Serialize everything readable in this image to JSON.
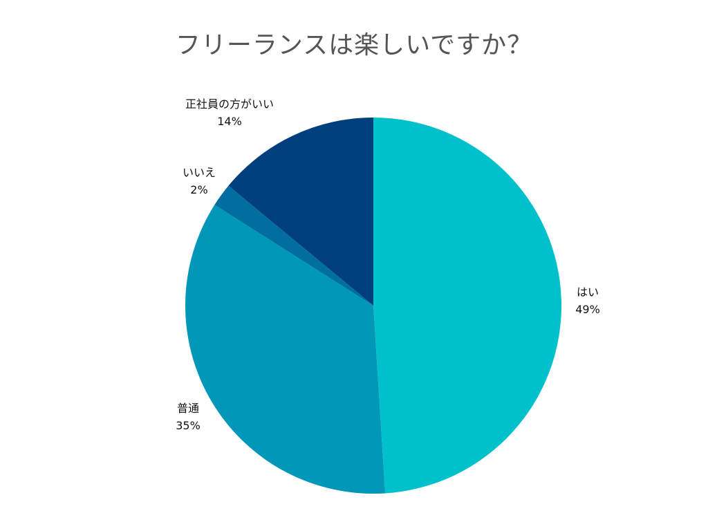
{
  "chart_data": {
    "type": "pie",
    "title": "フリーランスは楽しいですか？",
    "slices": [
      {
        "label": "はい",
        "value": 49,
        "value_label": "49%",
        "color": "#00C0CB"
      },
      {
        "label": "普通",
        "value": 35,
        "value_label": "35%",
        "color": "#0097B8"
      },
      {
        "label": "いいえ",
        "value": 2,
        "value_label": "2%",
        "color": "#006FA0"
      },
      {
        "label": "正社員の方がいい",
        "value": 14,
        "value_label": "14%",
        "color": "#003F7D"
      }
    ],
    "legend": "none",
    "start_angle": "12 o'clock",
    "direction": "clockwise"
  }
}
